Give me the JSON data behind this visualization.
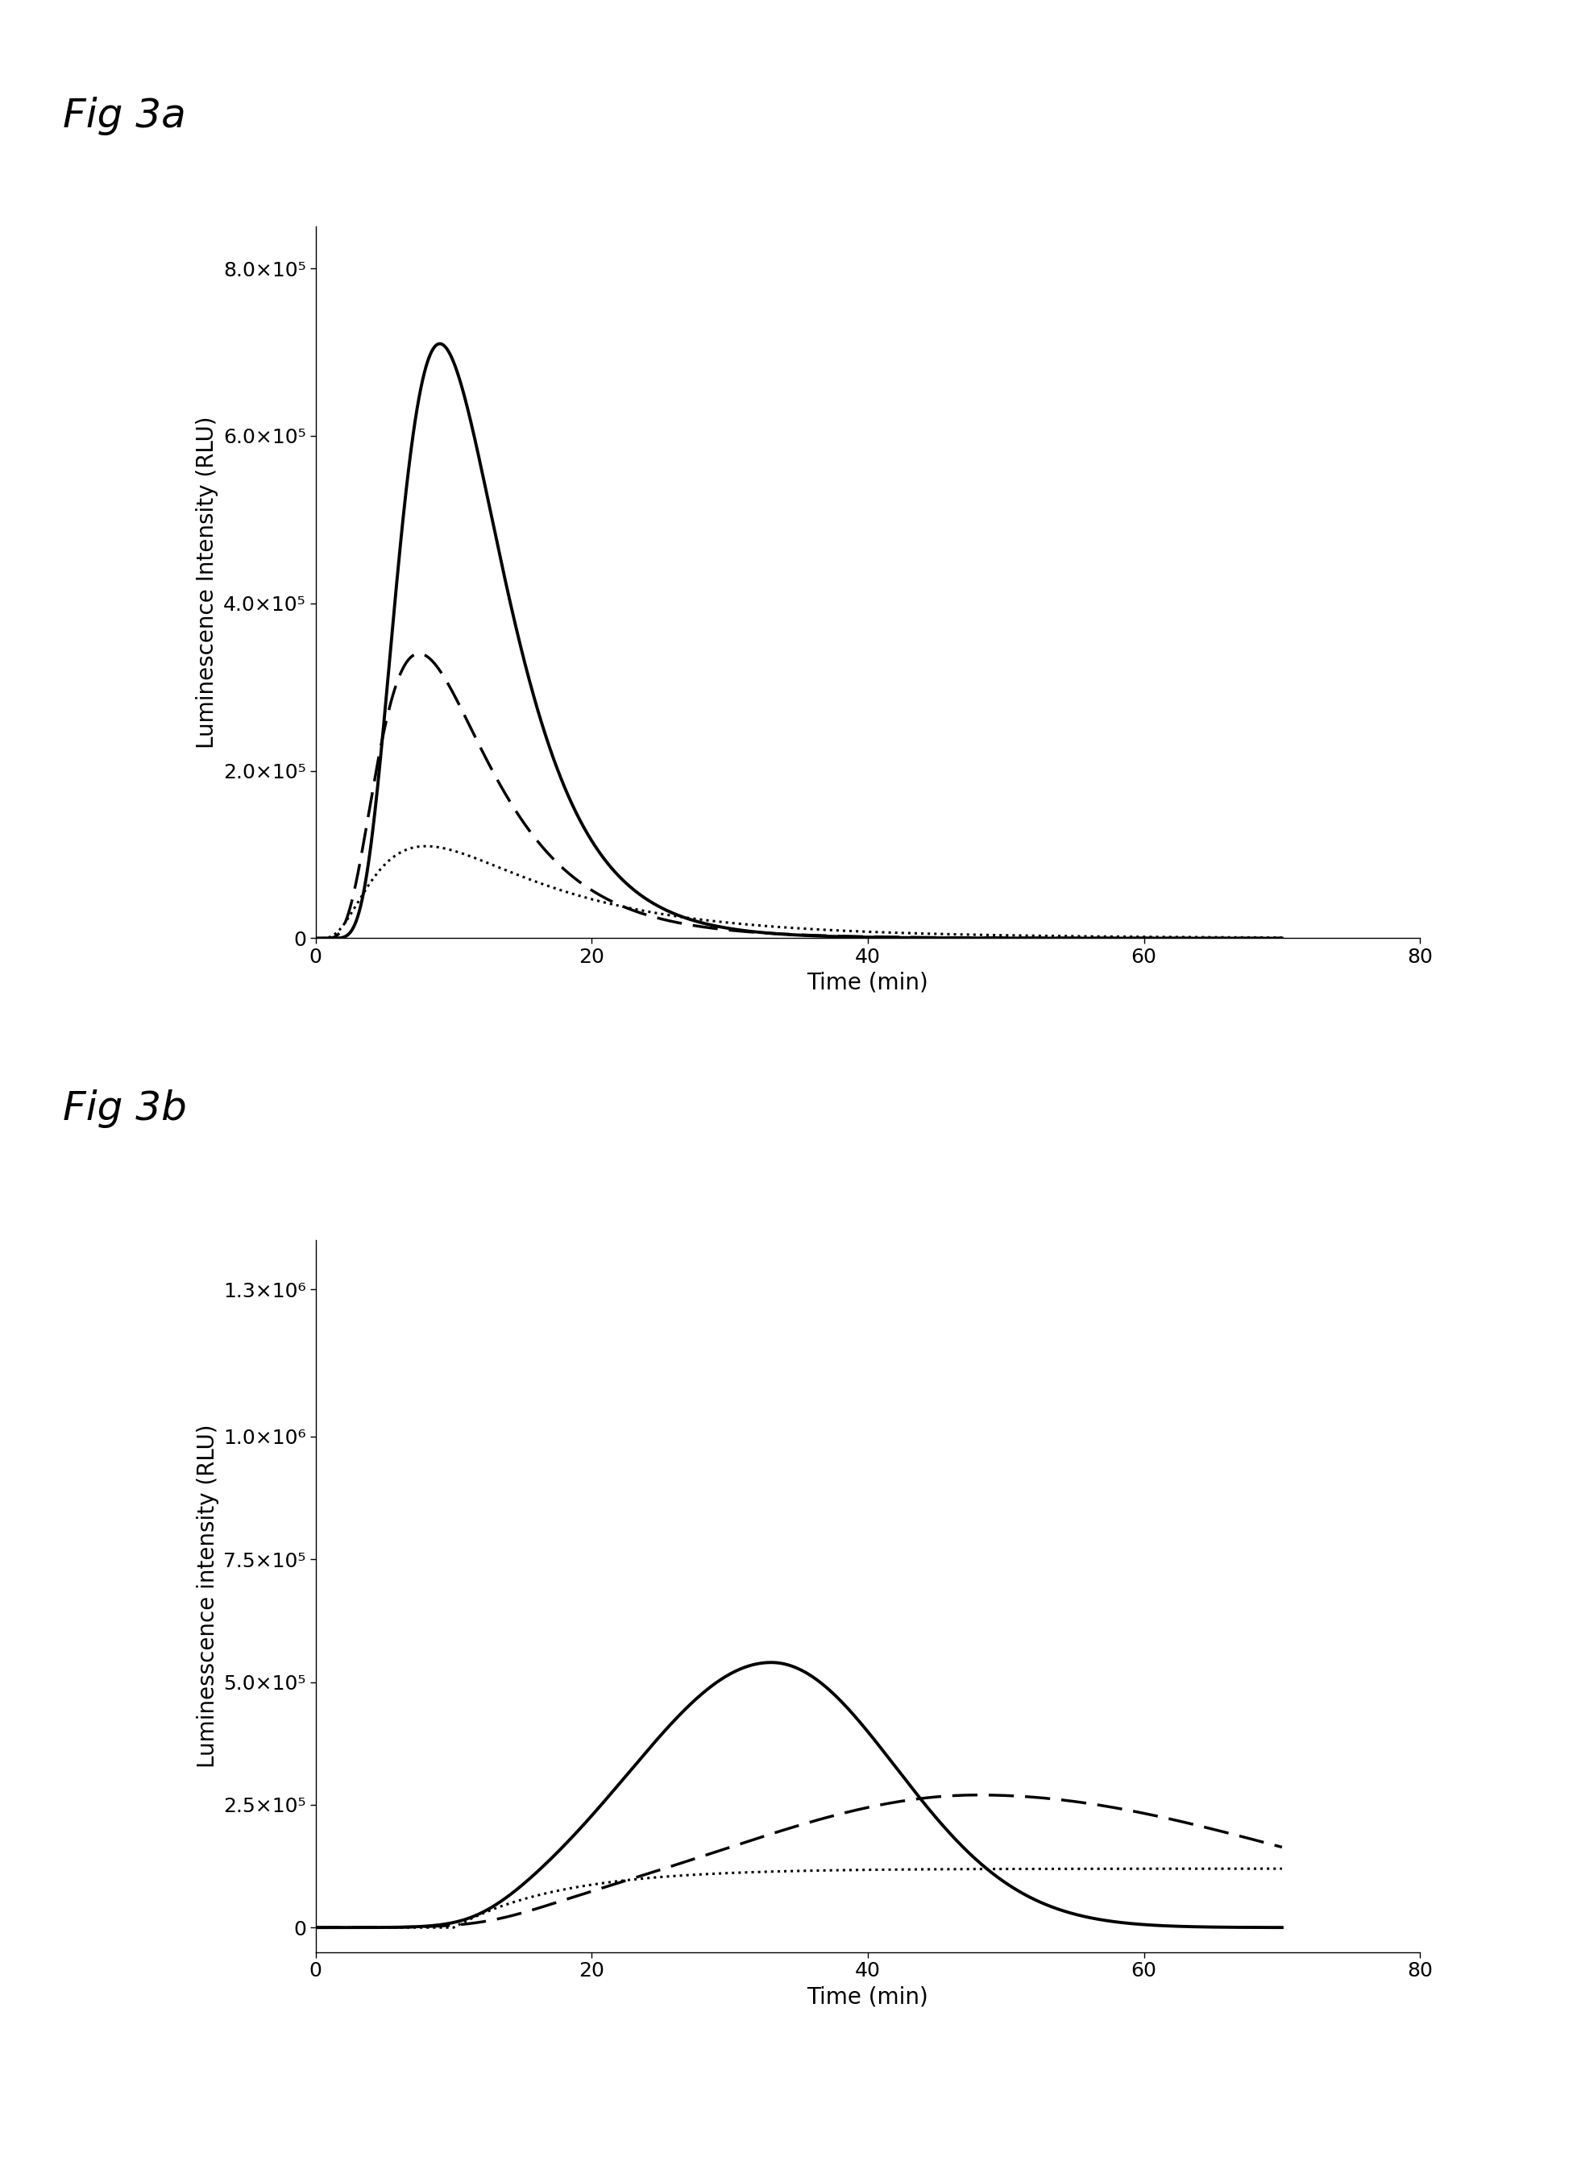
{
  "fig_a_title": "Fig 3a",
  "fig_b_title": "Fig 3b",
  "xlabel": "Time (min)",
  "fig_a_ylabel": "Luminescence Intensity (RLU)",
  "fig_b_ylabel": "Luminesscence intensity (RLU)",
  "xlim": [
    0,
    80
  ],
  "xticks": [
    0,
    20,
    40,
    60,
    80
  ],
  "fig_a_ylim": [
    0,
    850000.0
  ],
  "fig_a_yticks": [
    0,
    200000.0,
    400000.0,
    600000.0,
    800000.0
  ],
  "fig_a_ytick_labels": [
    "0",
    "2.0×10⁵",
    "4.0×10⁵",
    "6.0×10⁵",
    "8.0×10⁵"
  ],
  "fig_b_ylim": [
    -50000.0,
    1400000.0
  ],
  "fig_b_yticks": [
    0,
    250000.0,
    500000.0,
    750000.0,
    1000000.0,
    1300000.0
  ],
  "fig_b_ytick_labels": [
    "0",
    "2.5×10⁵",
    "5.0×10⁵",
    "7.5×10⁵",
    "1.0×10⁶",
    "1.3×10⁶"
  ],
  "line_color": "#000000",
  "background_color": "#ffffff",
  "title_fontsize": 36,
  "label_fontsize": 20,
  "tick_fontsize": 18
}
